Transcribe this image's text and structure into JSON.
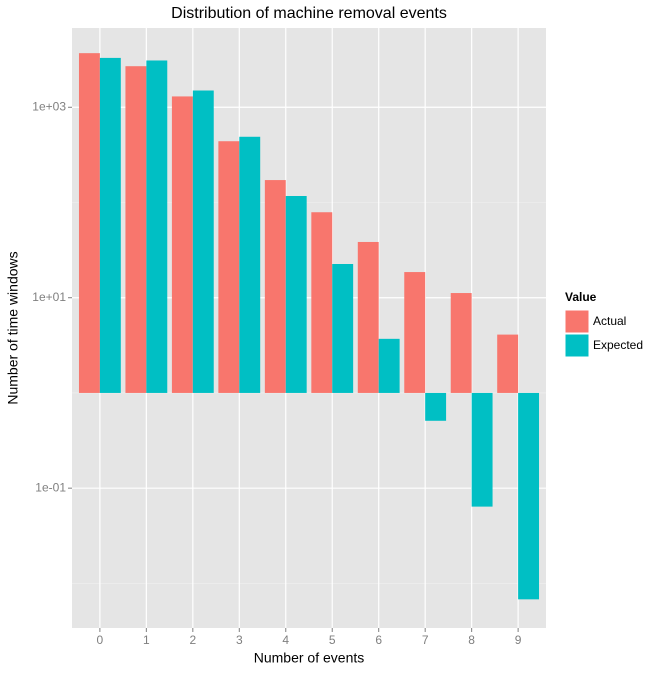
{
  "chart_data": {
    "type": "bar",
    "title": "Distribution of machine removal events",
    "x_label": "Number of events",
    "y_label": "Number of time windows",
    "categories": [
      "0",
      "1",
      "2",
      "3",
      "4",
      "5",
      "6",
      "7",
      "8",
      "9"
    ],
    "series": [
      {
        "name": "Actual",
        "color": "#F8766D",
        "values": [
          3700,
          2700,
          1300,
          440,
          172,
          79,
          38.5,
          18.6,
          11.2,
          4.1
        ]
      },
      {
        "name": "Expected",
        "color": "#00BFC4",
        "values": [
          3300,
          3100,
          1500,
          490,
          117,
          22.6,
          3.7,
          0.51,
          0.064,
          0.0068
        ]
      }
    ],
    "legend_title": "Value",
    "legend_position": "right",
    "log_scale": true,
    "grid": true,
    "ylim": [
      0.0034,
      6800
    ],
    "yticks": [
      {
        "value": 0.1,
        "label": "1e-01"
      },
      {
        "value": 10,
        "label": "1e+01"
      },
      {
        "value": 1000,
        "label": "1e+03"
      }
    ]
  }
}
